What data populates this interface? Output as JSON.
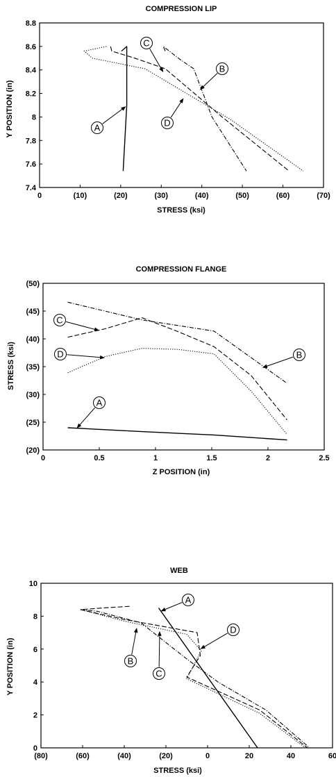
{
  "chart_data": [
    {
      "type": "line",
      "title": "COMPRESSION LIP",
      "xlabel": "STRESS  (ksi)",
      "ylabel": "Y POSITION (in)",
      "xlim": [
        0,
        -70
      ],
      "ylim": [
        7.4,
        8.8
      ],
      "xticks": [
        0,
        -10,
        -20,
        -30,
        -40,
        -50,
        -60,
        -70
      ],
      "xtick_labels": [
        "0",
        "(10)",
        "(20)",
        "(30)",
        "(40)",
        "(50)",
        "(60)",
        "(70)"
      ],
      "yticks": [
        7.4,
        7.6,
        7.8,
        8.0,
        8.2,
        8.4,
        8.6,
        8.8
      ],
      "ytick_labels": [
        "7.4",
        "7.6",
        "7.8",
        "8",
        "8.2",
        "8.4",
        "8.6",
        "8.8"
      ],
      "grid": false,
      "series": [
        {
          "name": "A",
          "dash": "solid",
          "x": [
            -20.6,
            -21.5,
            -21.5,
            -20.2
          ],
          "y": [
            7.54,
            8.1,
            8.6,
            8.56
          ]
        },
        {
          "name": "B",
          "dash": "dashdot",
          "x": [
            -31,
            -30.5,
            -35,
            -38,
            -42.5,
            -51
          ],
          "y": [
            8.56,
            8.6,
            8.48,
            8.41,
            8.0,
            7.54
          ]
        },
        {
          "name": "C",
          "dash": "dashed",
          "x": [
            -17.5,
            -17.8,
            -23.5,
            -31,
            -45,
            -61.5
          ],
          "y": [
            8.6,
            8.56,
            8.5,
            8.41,
            8.0,
            7.54
          ]
        },
        {
          "name": "D",
          "dash": "dotted",
          "x": [
            -16.5,
            -11,
            -13,
            -26,
            -47,
            -65
          ],
          "y": [
            8.6,
            8.56,
            8.5,
            8.41,
            7.98,
            7.54
          ]
        }
      ],
      "annotations": [
        "A",
        "B",
        "C",
        "D"
      ]
    },
    {
      "type": "line",
      "title": "COMPRESSION FLANGE",
      "xlabel": "Z POSITION (in)",
      "ylabel": "STRESS (ksi)",
      "xlim": [
        0,
        2.5
      ],
      "ylim": [
        -20,
        -50
      ],
      "xticks": [
        0,
        0.5,
        1,
        1.5,
        2,
        2.5
      ],
      "xtick_labels": [
        "0",
        "0.5",
        "1",
        "1.5",
        "2",
        "2.5"
      ],
      "yticks": [
        -20,
        -25,
        -30,
        -35,
        -40,
        -45,
        -50
      ],
      "ytick_labels": [
        "(20)",
        "(25)",
        "(30)",
        "(35)",
        "(40)",
        "(45)",
        "(50)"
      ],
      "grid": false,
      "series": [
        {
          "name": "A",
          "dash": "solid",
          "x": [
            0.22,
            0.88,
            1.52,
            2.17
          ],
          "y": [
            -24.0,
            -23.3,
            -22.7,
            -21.8
          ]
        },
        {
          "name": "B",
          "dash": "dashdot",
          "x": [
            0.22,
            0.88,
            1.52,
            2.17
          ],
          "y": [
            -46.6,
            -43.4,
            -41.4,
            -32.0
          ]
        },
        {
          "name": "C",
          "dash": "dashed",
          "x": [
            0.22,
            0.55,
            0.88,
            1.2,
            1.52,
            1.85,
            2.17
          ],
          "y": [
            -40.3,
            -41.8,
            -43.8,
            -41.3,
            -38.6,
            -33.4,
            -25.4
          ]
        },
        {
          "name": "D",
          "dash": "dotted",
          "x": [
            0.22,
            0.55,
            0.88,
            1.2,
            1.52,
            1.85,
            2.17
          ],
          "y": [
            -33.9,
            -36.8,
            -38.3,
            -38.1,
            -37.3,
            -30.6,
            -22.8
          ]
        }
      ],
      "annotations": [
        "A",
        "B",
        "C",
        "D"
      ]
    },
    {
      "type": "line",
      "title": "WEB",
      "xlabel": "STRESS (ksi)",
      "ylabel": "Y POSITION (in)",
      "xlim": [
        -80,
        60
      ],
      "ylim": [
        0,
        10
      ],
      "xticks": [
        -80,
        -60,
        -40,
        -20,
        0,
        20,
        40,
        60
      ],
      "xtick_labels": [
        "(80)",
        "(60)",
        "(40)",
        "(20)",
        "0",
        "20",
        "40",
        "60"
      ],
      "yticks": [
        0,
        2,
        4,
        6,
        8,
        10
      ],
      "ytick_labels": [
        "0",
        "2",
        "4",
        "6",
        "8",
        "10"
      ],
      "grid": false,
      "series": [
        {
          "name": "A",
          "dash": "solid",
          "x": [
            -23.5,
            24.0
          ],
          "y": [
            8.5,
            0.0
          ]
        },
        {
          "name": "B",
          "dash": "dashdot",
          "x": [
            -61.0,
            -53.0,
            -32.0,
            -20.0,
            -10.0,
            5.0,
            28.0,
            49.0
          ],
          "y": [
            8.4,
            8.3,
            7.6,
            6.4,
            5.4,
            4.0,
            2.3,
            0.0
          ]
        },
        {
          "name": "C",
          "dash": "dashed",
          "x": [
            -37.5,
            -50.0,
            -61.0,
            -40.0,
            -5.0,
            -3.5,
            -10.0,
            25.0,
            48.0
          ],
          "y": [
            8.6,
            8.5,
            8.4,
            7.8,
            7.0,
            5.6,
            4.3,
            2.3,
            0.0
          ]
        },
        {
          "name": "D",
          "dash": "dotted",
          "x": [
            -61.0,
            -40.0,
            -10.0,
            -3.0,
            -10.0,
            25.0,
            47.0
          ],
          "y": [
            8.4,
            7.7,
            6.9,
            5.9,
            4.2,
            2.1,
            0.0
          ]
        }
      ],
      "annotations": [
        "A",
        "B",
        "C",
        "D"
      ]
    }
  ]
}
